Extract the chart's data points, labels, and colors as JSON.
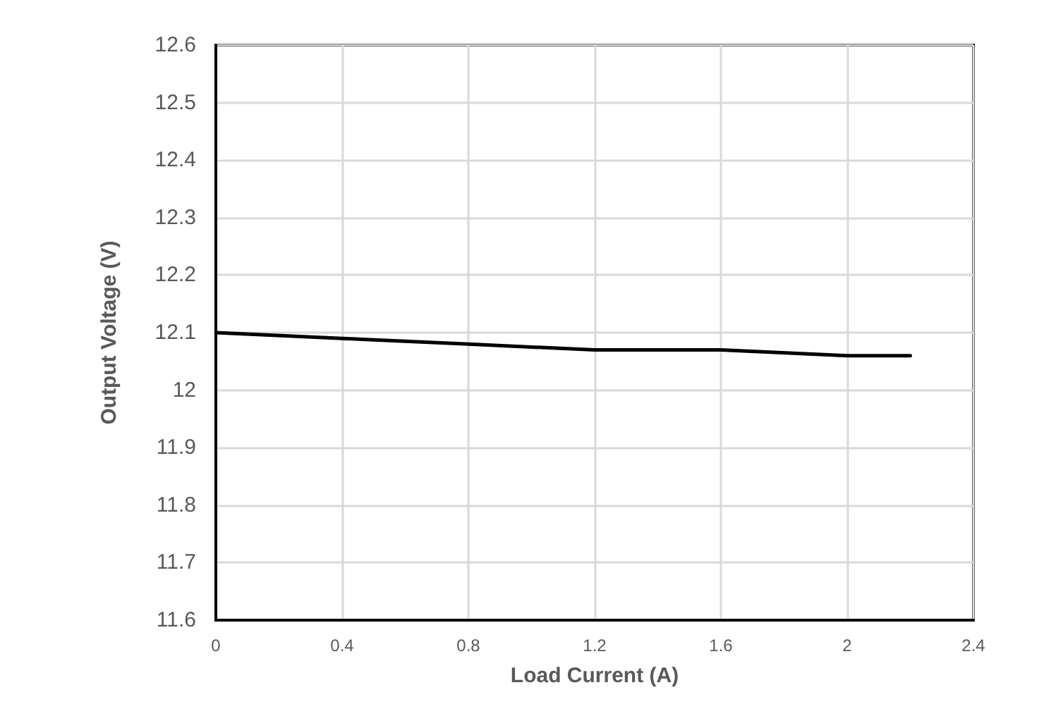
{
  "chart_data": {
    "type": "line",
    "xlabel": "Load Current (A)",
    "ylabel": "Output Voltage (V)",
    "x": [
      0,
      0.4,
      0.8,
      1.2,
      1.6,
      2.0,
      2.2
    ],
    "series": [
      {
        "color": "#000000",
        "values": [
          12.1,
          12.09,
          12.08,
          12.07,
          12.07,
          12.06,
          12.06
        ]
      }
    ],
    "xlim": [
      0,
      2.4
    ],
    "xticks": [
      0,
      0.4,
      0.8,
      1.2,
      1.6,
      2,
      2.4
    ],
    "ylim": [
      11.6,
      12.6
    ],
    "yticks": [
      11.6,
      11.7,
      11.8,
      11.9,
      12,
      12.1,
      12.2,
      12.3,
      12.4,
      12.5,
      12.6
    ],
    "grid": true,
    "marker": "none",
    "line_style": "solid"
  }
}
